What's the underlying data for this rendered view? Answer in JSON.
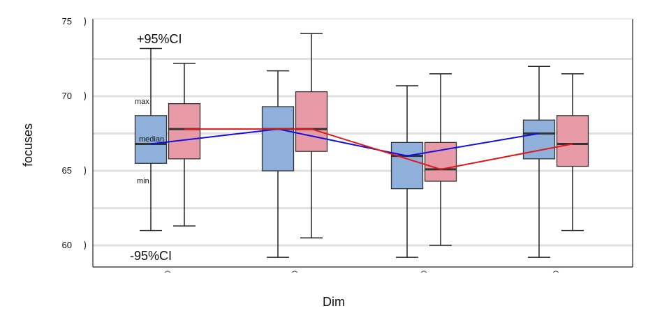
{
  "chart_data": {
    "type": "box",
    "xlabel": "Dim",
    "ylabel": "focuses",
    "ylim": [
      58.6,
      75.2
    ],
    "yticks": [
      60,
      65,
      70,
      75
    ],
    "gridlines_y": [
      60,
      62.5,
      65,
      67.5,
      70,
      72.5
    ],
    "grid": true,
    "categories": [
      "",
      "",
      "",
      ""
    ],
    "series": [
      {
        "color": "#90b0dc",
        "boxes": [
          {
            "low": 61.0,
            "q1": 65.5,
            "median": 66.8,
            "q3": 68.7,
            "high": 73.2
          },
          {
            "low": 59.2,
            "q1": 65.0,
            "median": 67.8,
            "q3": 69.3,
            "high": 71.7
          },
          {
            "low": 59.2,
            "q1": 63.8,
            "median": 66.0,
            "q3": 66.9,
            "high": 70.7
          },
          {
            "low": 59.2,
            "q1": 65.8,
            "median": 67.5,
            "q3": 68.4,
            "high": 72.0
          }
        ],
        "median_line_color": "#1010e0"
      },
      {
        "color": "#e89aa6",
        "boxes": [
          {
            "low": 61.3,
            "q1": 65.8,
            "median": 67.8,
            "q3": 69.5,
            "high": 72.2
          },
          {
            "low": 60.5,
            "q1": 66.3,
            "median": 67.8,
            "q3": 70.3,
            "high": 74.2
          },
          {
            "low": 60.0,
            "q1": 64.3,
            "median": 65.1,
            "q3": 66.9,
            "high": 71.5
          },
          {
            "low": 61.0,
            "q1": 65.3,
            "median": 66.8,
            "q3": 68.7,
            "high": 71.5
          }
        ],
        "median_line_color": "#e01818"
      }
    ],
    "annotations": {
      "upper_ci": "+95%CI",
      "lower_ci": "-95%CI",
      "max": "max",
      "median": "median",
      "min": "min"
    }
  }
}
